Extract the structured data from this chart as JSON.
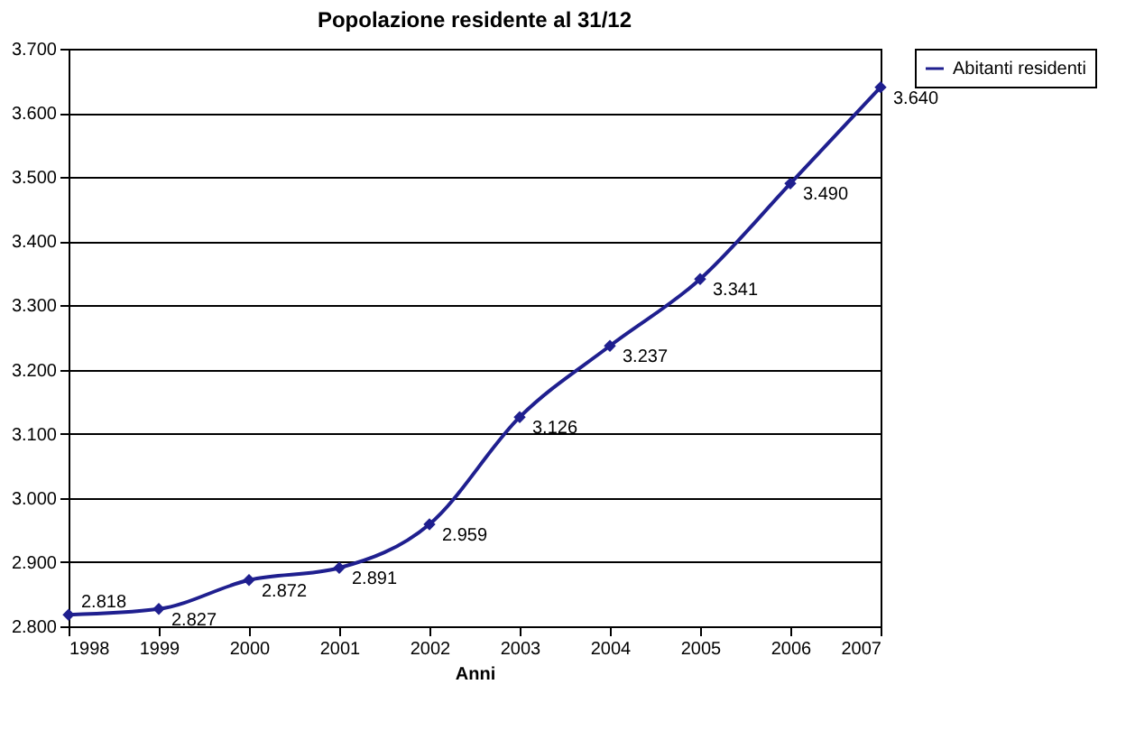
{
  "chart_data": {
    "type": "line",
    "title": "Popolazione residente al 31/12",
    "xlabel": "Anni",
    "x": [
      1998,
      1999,
      2000,
      2001,
      2002,
      2003,
      2004,
      2005,
      2006,
      2007
    ],
    "series": [
      {
        "name": "Abitanti residenti",
        "color": "#1f1f8f",
        "values": [
          2818,
          2827,
          2872,
          2891,
          2959,
          3126,
          3237,
          3341,
          3490,
          3640
        ],
        "value_labels": [
          "2.818",
          "2.827",
          "2.872",
          "2.891",
          "2.959",
          "3.126",
          "3.237",
          "3.341",
          "3.490",
          "3.640"
        ]
      }
    ],
    "xlim": [
      1998,
      2007
    ],
    "xticks": [
      1998,
      1999,
      2000,
      2001,
      2002,
      2003,
      2004,
      2005,
      2006,
      2007
    ],
    "ylim": [
      2800,
      3700
    ],
    "yticks": [
      {
        "value": 2800,
        "label": "2.800"
      },
      {
        "value": 2900,
        "label": "2.900"
      },
      {
        "value": 3000,
        "label": "3.000"
      },
      {
        "value": 3100,
        "label": "3.100"
      },
      {
        "value": 3200,
        "label": "3.200"
      },
      {
        "value": 3300,
        "label": "3.300"
      },
      {
        "value": 3400,
        "label": "3.400"
      },
      {
        "value": 3500,
        "label": "3.500"
      },
      {
        "value": 3600,
        "label": "3.600"
      },
      {
        "value": 3700,
        "label": "3.700"
      }
    ],
    "grid": "y",
    "legend": "right",
    "marker": "diamond",
    "line_style": "solid"
  }
}
